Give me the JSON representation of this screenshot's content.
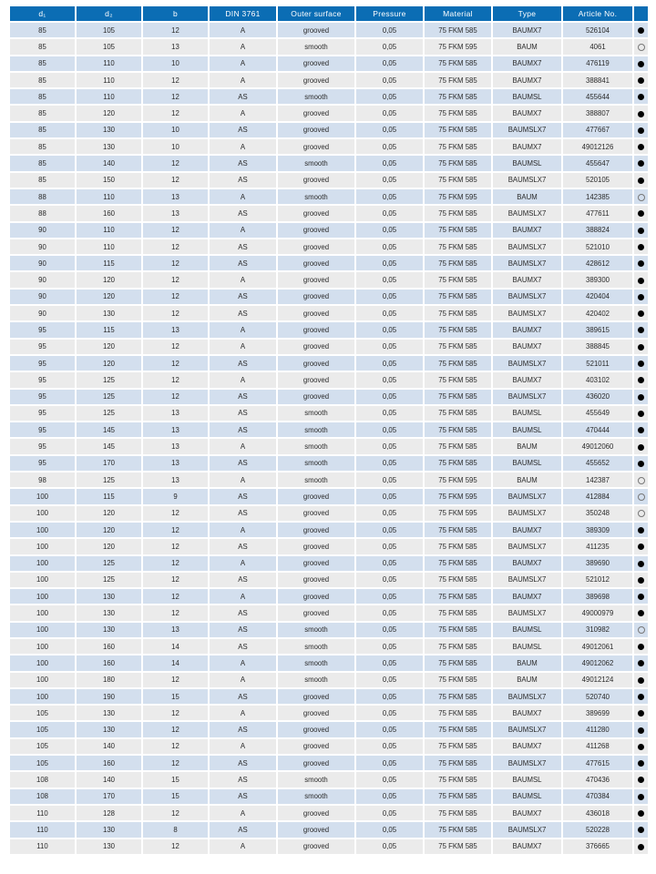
{
  "colors": {
    "header": "#0b6db4",
    "row_odd": "#d3dfee",
    "row_even": "#ebebeb"
  },
  "table": {
    "headers": [
      "d₁",
      "d₂",
      "b",
      "DIN 3761",
      "Outer surface",
      "Pressure",
      "Material",
      "Type",
      "Article No.",
      ""
    ],
    "rows": [
      [
        "85",
        "105",
        "12",
        "A",
        "grooved",
        "0,05",
        "75 FKM 585",
        "BAUMX7",
        "526104",
        "filled"
      ],
      [
        "85",
        "105",
        "13",
        "A",
        "smooth",
        "0,05",
        "75 FKM 595",
        "BAUM",
        "4061",
        "empty"
      ],
      [
        "85",
        "110",
        "10",
        "A",
        "grooved",
        "0,05",
        "75 FKM 585",
        "BAUMX7",
        "476119",
        "filled"
      ],
      [
        "85",
        "110",
        "12",
        "A",
        "grooved",
        "0,05",
        "75 FKM 585",
        "BAUMX7",
        "388841",
        "filled"
      ],
      [
        "85",
        "110",
        "12",
        "AS",
        "smooth",
        "0,05",
        "75 FKM 585",
        "BAUMSL",
        "455644",
        "filled"
      ],
      [
        "85",
        "120",
        "12",
        "A",
        "grooved",
        "0,05",
        "75 FKM 585",
        "BAUMX7",
        "388807",
        "filled"
      ],
      [
        "85",
        "130",
        "10",
        "AS",
        "grooved",
        "0,05",
        "75 FKM 585",
        "BAUMSLX7",
        "477667",
        "filled"
      ],
      [
        "85",
        "130",
        "10",
        "A",
        "grooved",
        "0,05",
        "75 FKM 585",
        "BAUMX7",
        "49012126",
        "filled"
      ],
      [
        "85",
        "140",
        "12",
        "AS",
        "smooth",
        "0,05",
        "75 FKM 585",
        "BAUMSL",
        "455647",
        "filled"
      ],
      [
        "85",
        "150",
        "12",
        "AS",
        "grooved",
        "0,05",
        "75 FKM 585",
        "BAUMSLX7",
        "520105",
        "filled"
      ],
      [
        "88",
        "110",
        "13",
        "A",
        "smooth",
        "0,05",
        "75 FKM 595",
        "BAUM",
        "142385",
        "empty"
      ],
      [
        "88",
        "160",
        "13",
        "AS",
        "grooved",
        "0,05",
        "75 FKM 585",
        "BAUMSLX7",
        "477611",
        "filled"
      ],
      [
        "90",
        "110",
        "12",
        "A",
        "grooved",
        "0,05",
        "75 FKM 585",
        "BAUMX7",
        "388824",
        "filled"
      ],
      [
        "90",
        "110",
        "12",
        "AS",
        "grooved",
        "0,05",
        "75 FKM 585",
        "BAUMSLX7",
        "521010",
        "filled"
      ],
      [
        "90",
        "115",
        "12",
        "AS",
        "grooved",
        "0,05",
        "75 FKM 585",
        "BAUMSLX7",
        "428612",
        "filled"
      ],
      [
        "90",
        "120",
        "12",
        "A",
        "grooved",
        "0,05",
        "75 FKM 585",
        "BAUMX7",
        "389300",
        "filled"
      ],
      [
        "90",
        "120",
        "12",
        "AS",
        "grooved",
        "0,05",
        "75 FKM 585",
        "BAUMSLX7",
        "420404",
        "filled"
      ],
      [
        "90",
        "130",
        "12",
        "AS",
        "grooved",
        "0,05",
        "75 FKM 585",
        "BAUMSLX7",
        "420402",
        "filled"
      ],
      [
        "95",
        "115",
        "13",
        "A",
        "grooved",
        "0,05",
        "75 FKM 585",
        "BAUMX7",
        "389615",
        "filled"
      ],
      [
        "95",
        "120",
        "12",
        "A",
        "grooved",
        "0,05",
        "75 FKM 585",
        "BAUMX7",
        "388845",
        "filled"
      ],
      [
        "95",
        "120",
        "12",
        "AS",
        "grooved",
        "0,05",
        "75 FKM 585",
        "BAUMSLX7",
        "521011",
        "filled"
      ],
      [
        "95",
        "125",
        "12",
        "A",
        "grooved",
        "0,05",
        "75 FKM 585",
        "BAUMX7",
        "403102",
        "filled"
      ],
      [
        "95",
        "125",
        "12",
        "AS",
        "grooved",
        "0,05",
        "75 FKM 585",
        "BAUMSLX7",
        "436020",
        "filled"
      ],
      [
        "95",
        "125",
        "13",
        "AS",
        "smooth",
        "0,05",
        "75 FKM 585",
        "BAUMSL",
        "455649",
        "filled"
      ],
      [
        "95",
        "145",
        "13",
        "AS",
        "smooth",
        "0,05",
        "75 FKM 585",
        "BAUMSL",
        "470444",
        "filled"
      ],
      [
        "95",
        "145",
        "13",
        "A",
        "smooth",
        "0,05",
        "75 FKM 585",
        "BAUM",
        "49012060",
        "filled"
      ],
      [
        "95",
        "170",
        "13",
        "AS",
        "smooth",
        "0,05",
        "75 FKM 585",
        "BAUMSL",
        "455652",
        "filled"
      ],
      [
        "98",
        "125",
        "13",
        "A",
        "smooth",
        "0,05",
        "75 FKM 595",
        "BAUM",
        "142387",
        "empty"
      ],
      [
        "100",
        "115",
        "9",
        "AS",
        "grooved",
        "0,05",
        "75 FKM 595",
        "BAUMSLX7",
        "412884",
        "empty"
      ],
      [
        "100",
        "120",
        "12",
        "AS",
        "grooved",
        "0,05",
        "75 FKM 595",
        "BAUMSLX7",
        "350248",
        "empty"
      ],
      [
        "100",
        "120",
        "12",
        "A",
        "grooved",
        "0,05",
        "75 FKM 585",
        "BAUMX7",
        "389309",
        "filled"
      ],
      [
        "100",
        "120",
        "12",
        "AS",
        "grooved",
        "0,05",
        "75 FKM 585",
        "BAUMSLX7",
        "411235",
        "filled"
      ],
      [
        "100",
        "125",
        "12",
        "A",
        "grooved",
        "0,05",
        "75 FKM 585",
        "BAUMX7",
        "389690",
        "filled"
      ],
      [
        "100",
        "125",
        "12",
        "AS",
        "grooved",
        "0,05",
        "75 FKM 585",
        "BAUMSLX7",
        "521012",
        "filled"
      ],
      [
        "100",
        "130",
        "12",
        "A",
        "grooved",
        "0,05",
        "75 FKM 585",
        "BAUMX7",
        "389698",
        "filled"
      ],
      [
        "100",
        "130",
        "12",
        "AS",
        "grooved",
        "0,05",
        "75 FKM 585",
        "BAUMSLX7",
        "49000979",
        "filled"
      ],
      [
        "100",
        "130",
        "13",
        "AS",
        "smooth",
        "0,05",
        "75 FKM 585",
        "BAUMSL",
        "310982",
        "empty"
      ],
      [
        "100",
        "160",
        "14",
        "AS",
        "smooth",
        "0,05",
        "75 FKM 585",
        "BAUMSL",
        "49012061",
        "filled"
      ],
      [
        "100",
        "160",
        "14",
        "A",
        "smooth",
        "0,05",
        "75 FKM 585",
        "BAUM",
        "49012062",
        "filled"
      ],
      [
        "100",
        "180",
        "12",
        "A",
        "smooth",
        "0,05",
        "75 FKM 585",
        "BAUM",
        "49012124",
        "filled"
      ],
      [
        "100",
        "190",
        "15",
        "AS",
        "grooved",
        "0,05",
        "75 FKM 585",
        "BAUMSLX7",
        "520740",
        "filled"
      ],
      [
        "105",
        "130",
        "12",
        "A",
        "grooved",
        "0,05",
        "75 FKM 585",
        "BAUMX7",
        "389699",
        "filled"
      ],
      [
        "105",
        "130",
        "12",
        "AS",
        "grooved",
        "0,05",
        "75 FKM 585",
        "BAUMSLX7",
        "411280",
        "filled"
      ],
      [
        "105",
        "140",
        "12",
        "A",
        "grooved",
        "0,05",
        "75 FKM 585",
        "BAUMX7",
        "411268",
        "filled"
      ],
      [
        "105",
        "160",
        "12",
        "AS",
        "grooved",
        "0,05",
        "75 FKM 585",
        "BAUMSLX7",
        "477615",
        "filled"
      ],
      [
        "108",
        "140",
        "15",
        "AS",
        "smooth",
        "0,05",
        "75 FKM 585",
        "BAUMSL",
        "470436",
        "filled"
      ],
      [
        "108",
        "170",
        "15",
        "AS",
        "smooth",
        "0,05",
        "75 FKM 585",
        "BAUMSL",
        "470384",
        "filled"
      ],
      [
        "110",
        "128",
        "12",
        "A",
        "grooved",
        "0,05",
        "75 FKM 585",
        "BAUMX7",
        "436018",
        "filled"
      ],
      [
        "110",
        "130",
        "8",
        "AS",
        "grooved",
        "0,05",
        "75 FKM 585",
        "BAUMSLX7",
        "520228",
        "filled"
      ],
      [
        "110",
        "130",
        "12",
        "A",
        "grooved",
        "0,05",
        "75 FKM 585",
        "BAUMX7",
        "376665",
        "filled"
      ]
    ]
  }
}
